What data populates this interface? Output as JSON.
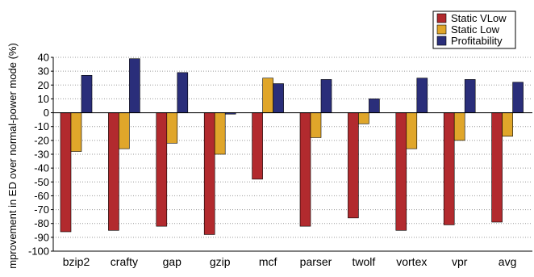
{
  "chart_data": {
    "type": "bar",
    "title": "",
    "xlabel": "",
    "ylabel": "mprovement in ED over normal-power mode (%)",
    "ylim": [
      -100,
      40
    ],
    "yticks": [
      40,
      30,
      20,
      10,
      0,
      -10,
      -20,
      -30,
      -40,
      -50,
      -60,
      -70,
      -80,
      -90,
      -100
    ],
    "grid": true,
    "legend_position": "top-right",
    "categories": [
      "bzip2",
      "crafty",
      "gap",
      "gzip",
      "mcf",
      "parser",
      "twolf",
      "vortex",
      "vpr",
      "avg"
    ],
    "series": [
      {
        "name": "Static VLow",
        "color": "#b22a2e",
        "values": [
          -86,
          -85,
          -82,
          -88,
          -48,
          -82,
          -76,
          -85,
          -81,
          -79
        ]
      },
      {
        "name": "Static Low",
        "color": "#e0a62a",
        "values": [
          -28,
          -26,
          -22,
          -30,
          25,
          -18,
          -8,
          -26,
          -20,
          -17
        ]
      },
      {
        "name": "Profitability",
        "color": "#2a2e7a",
        "values": [
          27,
          39,
          29,
          -1,
          21,
          24,
          10,
          25,
          24,
          22
        ]
      }
    ]
  }
}
